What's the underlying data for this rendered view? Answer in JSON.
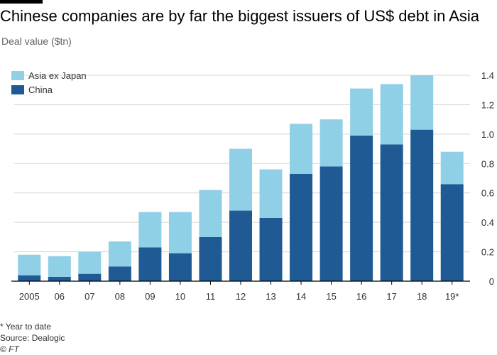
{
  "header": {
    "title": "Chinese companies are by far the biggest issuers of US$ debt in Asia",
    "subtitle": "Deal value ($tn)"
  },
  "footer": {
    "footnote": "* Year to date",
    "source": "Source: Dealogic",
    "credit": "© FT"
  },
  "colors": {
    "china": "#1f5a94",
    "asia_ex_japan": "#8fd0e6",
    "gridline": "#d9d4cf",
    "baseline": "#000000",
    "tick_label": "#33302e"
  },
  "chart_data": {
    "type": "bar",
    "stacked": true,
    "title": "Chinese companies are by far the biggest issuers of US$ debt in Asia",
    "ylabel": "Deal value ($tn)",
    "xlabel": "",
    "categories": [
      "2005",
      "06",
      "07",
      "08",
      "09",
      "10",
      "11",
      "12",
      "13",
      "14",
      "15",
      "16",
      "17",
      "18",
      "19*"
    ],
    "series": [
      {
        "name": "China",
        "values": [
          0.04,
          0.03,
          0.05,
          0.1,
          0.23,
          0.19,
          0.3,
          0.48,
          0.43,
          0.73,
          0.78,
          0.99,
          0.93,
          1.03,
          0.66
        ]
      },
      {
        "name": "Asia ex Japan",
        "values": [
          0.14,
          0.14,
          0.15,
          0.17,
          0.24,
          0.28,
          0.32,
          0.42,
          0.33,
          0.34,
          0.32,
          0.32,
          0.41,
          0.37,
          0.22
        ]
      }
    ],
    "legend": [
      "Asia ex Japan",
      "China"
    ],
    "legend_position": "top-left",
    "ylim": [
      0,
      1.4
    ],
    "yticks": [
      "0",
      "0.2",
      "0.4",
      "0.6",
      "0.8",
      "1.0",
      "1.2",
      "1.4"
    ],
    "ytick_values": [
      0,
      0.2,
      0.4,
      0.6,
      0.8,
      1.0,
      1.2,
      1.4
    ],
    "y_axis_side": "right",
    "grid": true
  }
}
